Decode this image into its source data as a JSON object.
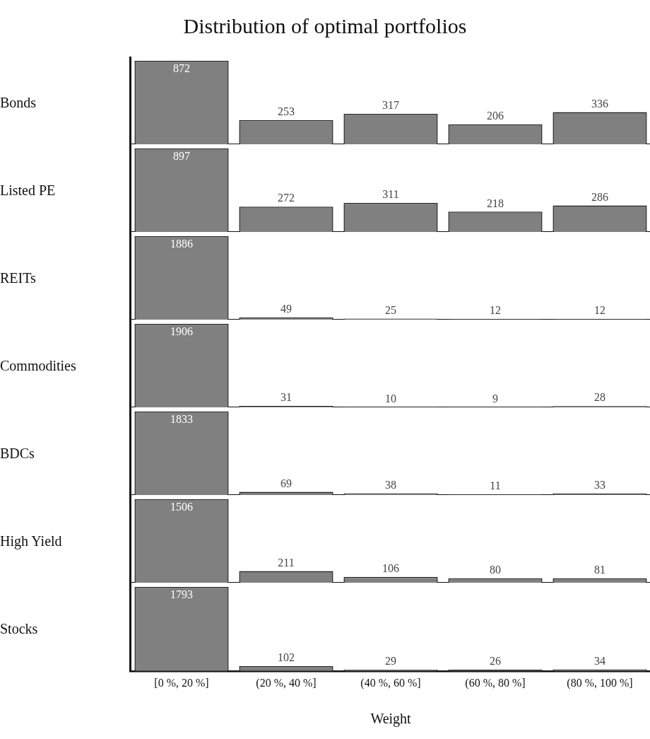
{
  "chart_data": [
    {
      "type": "bar",
      "title": "Distribution of optimal portfolios",
      "ylabel": "Bonds",
      "categories": [
        null,
        null,
        null,
        null,
        null
      ],
      "values": [
        872,
        253,
        317,
        206,
        336
      ],
      "color": "#808080",
      "data_labels": true
    },
    {
      "type": "bar",
      "ylabel": "Listed PE",
      "categories": [
        null,
        null,
        null,
        null,
        null
      ],
      "values": [
        897,
        272,
        311,
        218,
        286
      ],
      "color": "#808080",
      "data_labels": true
    },
    {
      "type": "bar",
      "ylabel": "REITs",
      "categories": [
        null,
        null,
        null,
        null,
        null
      ],
      "values": [
        1886,
        49,
        25,
        12,
        12
      ],
      "color": "#808080",
      "data_labels": true
    },
    {
      "type": "bar",
      "ylabel": "Commodities",
      "categories": [
        null,
        null,
        null,
        null,
        null
      ],
      "values": [
        1906,
        31,
        10,
        9,
        28
      ],
      "color": "#808080",
      "data_labels": true
    },
    {
      "type": "bar",
      "ylabel": "BDCs",
      "categories": [
        null,
        null,
        null,
        null,
        null
      ],
      "values": [
        1833,
        69,
        38,
        11,
        33
      ],
      "color": "#808080",
      "data_labels": true
    },
    {
      "type": "bar",
      "ylabel": "High Yield",
      "categories": [
        null,
        null,
        null,
        null,
        null
      ],
      "values": [
        1506,
        211,
        106,
        80,
        81
      ],
      "color": "#808080",
      "data_labels": true
    },
    {
      "type": "bar",
      "ylabel": "Stocks",
      "xlabel": "Weight",
      "categories": [
        "[0 %, 20 %]",
        "(20 %, 40 %]",
        "(40 %, 60 %]",
        "(60 %, 80 %]",
        "(80 %, 100 %]"
      ],
      "values": [
        1793,
        102,
        29,
        26,
        34
      ],
      "color": "#808080",
      "data_labels": true,
      "tick_labels": "x"
    }
  ]
}
